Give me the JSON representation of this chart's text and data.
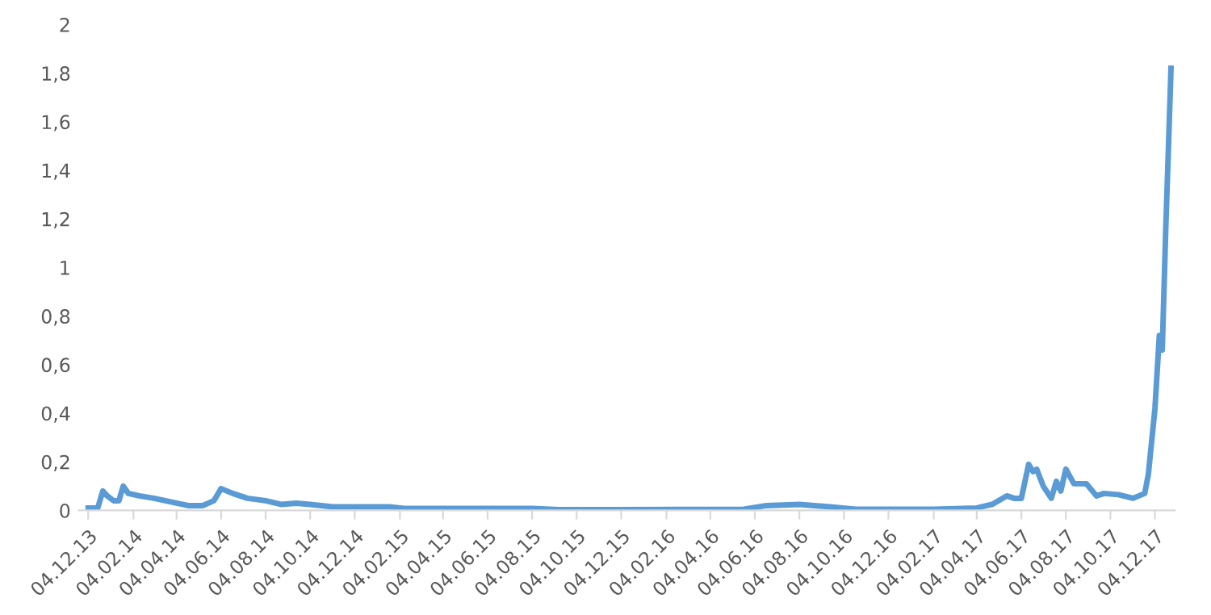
{
  "chart_data": {
    "type": "line",
    "x": [
      "2013-12-04",
      "2013-12-17",
      "2013-12-24",
      "2013-12-30",
      "2014-01-08",
      "2014-01-15",
      "2014-01-21",
      "2014-01-28",
      "2014-02-12",
      "2014-03-04",
      "2014-04-04",
      "2014-04-20",
      "2014-05-10",
      "2014-05-25",
      "2014-06-04",
      "2014-06-20",
      "2014-07-10",
      "2014-08-04",
      "2014-08-25",
      "2014-09-15",
      "2014-10-04",
      "2014-11-04",
      "2015-01-04",
      "2015-01-20",
      "2015-02-10",
      "2015-06-04",
      "2015-08-04",
      "2015-09-10",
      "2016-05-20",
      "2016-06-20",
      "2016-08-04",
      "2016-09-15",
      "2016-10-20",
      "2017-02-04",
      "2017-04-04",
      "2017-04-25",
      "2017-05-15",
      "2017-05-25",
      "2017-06-04",
      "2017-06-14",
      "2017-06-20",
      "2017-06-25",
      "2017-07-04",
      "2017-07-15",
      "2017-07-22",
      "2017-07-28",
      "2017-08-04",
      "2017-08-15",
      "2017-09-01",
      "2017-09-15",
      "2017-09-25",
      "2017-10-15",
      "2017-11-04",
      "2017-11-20",
      "2017-11-25",
      "2017-12-04",
      "2017-12-10",
      "2017-12-14",
      "2017-12-19",
      "2017-12-22",
      "2017-12-26"
    ],
    "series": [
      {
        "color": "#5b9bd5",
        "values": [
          0.01,
          0.01,
          0.08,
          0.06,
          0.04,
          0.04,
          0.1,
          0.07,
          0.06,
          0.05,
          0.03,
          0.02,
          0.02,
          0.04,
          0.09,
          0.07,
          0.05,
          0.04,
          0.025,
          0.03,
          0.025,
          0.015,
          0.015,
          0.015,
          0.008,
          0.008,
          0.008,
          0.003,
          0.005,
          0.02,
          0.025,
          0.015,
          0.005,
          0.005,
          0.01,
          0.025,
          0.06,
          0.05,
          0.05,
          0.19,
          0.16,
          0.17,
          0.1,
          0.05,
          0.12,
          0.08,
          0.17,
          0.11,
          0.11,
          0.06,
          0.07,
          0.065,
          0.05,
          0.07,
          0.15,
          0.42,
          0.72,
          0.66,
          1.18,
          1.45,
          1.82
        ]
      }
    ],
    "xlim": [
      "2013-11-21",
      "2017-12-31"
    ],
    "xticks": [
      {
        "value": "2013-12-04",
        "label": "04.12.13"
      },
      {
        "value": "2014-02-04",
        "label": "04.02.14"
      },
      {
        "value": "2014-04-04",
        "label": "04.04.14"
      },
      {
        "value": "2014-06-04",
        "label": "04.06.14"
      },
      {
        "value": "2014-08-04",
        "label": "04.08.14"
      },
      {
        "value": "2014-10-04",
        "label": "04.10.14"
      },
      {
        "value": "2014-12-04",
        "label": "04.12.14"
      },
      {
        "value": "2015-02-04",
        "label": "04.02.15"
      },
      {
        "value": "2015-04-04",
        "label": "04.04.15"
      },
      {
        "value": "2015-06-04",
        "label": "04.06.15"
      },
      {
        "value": "2015-08-04",
        "label": "04.08.15"
      },
      {
        "value": "2015-10-04",
        "label": "04.10.15"
      },
      {
        "value": "2015-12-04",
        "label": "04.12.15"
      },
      {
        "value": "2016-02-04",
        "label": "04.02.16"
      },
      {
        "value": "2016-04-04",
        "label": "04.04.16"
      },
      {
        "value": "2016-06-04",
        "label": "04.06.16"
      },
      {
        "value": "2016-08-04",
        "label": "04.08.16"
      },
      {
        "value": "2016-10-04",
        "label": "04.10.16"
      },
      {
        "value": "2016-12-04",
        "label": "04.12.16"
      },
      {
        "value": "2017-02-04",
        "label": "04.02.17"
      },
      {
        "value": "2017-04-04",
        "label": "04.04.17"
      },
      {
        "value": "2017-06-04",
        "label": "04.06.17"
      },
      {
        "value": "2017-08-04",
        "label": "04.08.17"
      },
      {
        "value": "2017-10-04",
        "label": "04.10.17"
      },
      {
        "value": "2017-12-04",
        "label": "04.12.17"
      }
    ],
    "ylim": [
      0,
      2
    ],
    "yticks": [
      0,
      {
        "value": 0.2,
        "label": "0,2"
      },
      {
        "value": 0.4,
        "label": "0,4"
      },
      {
        "value": 0.6,
        "label": "0,6"
      },
      {
        "value": 0.8,
        "label": "0,8"
      },
      1,
      {
        "value": 1.2,
        "label": "1,2"
      },
      {
        "value": 1.4,
        "label": "1,4"
      },
      {
        "value": 1.6,
        "label": "1,6"
      },
      {
        "value": 1.8,
        "label": "1,8"
      },
      2
    ],
    "grid": false,
    "marker": "none",
    "line_style": "solid"
  }
}
